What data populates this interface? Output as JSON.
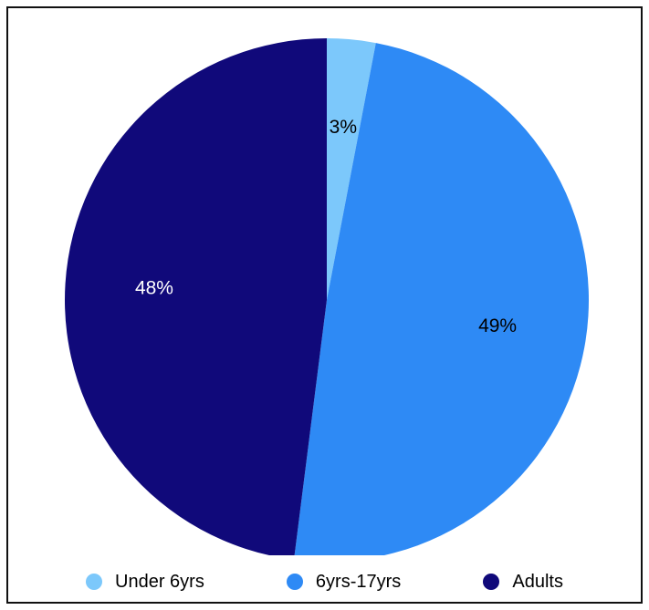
{
  "chart_data": {
    "type": "pie",
    "title": "",
    "legend_position": "bottom",
    "slices": [
      {
        "label": "Under 6yrs",
        "value": 3,
        "display": "3%",
        "color": "#7cc8fb",
        "text_color": "#000000"
      },
      {
        "label": "6yrs-17yrs",
        "value": 49,
        "display": "49%",
        "color": "#2e8af5",
        "text_color": "#000000"
      },
      {
        "label": "Adults",
        "value": 48,
        "display": "48%",
        "color": "#10097a",
        "text_color": "#ffffff"
      }
    ]
  }
}
